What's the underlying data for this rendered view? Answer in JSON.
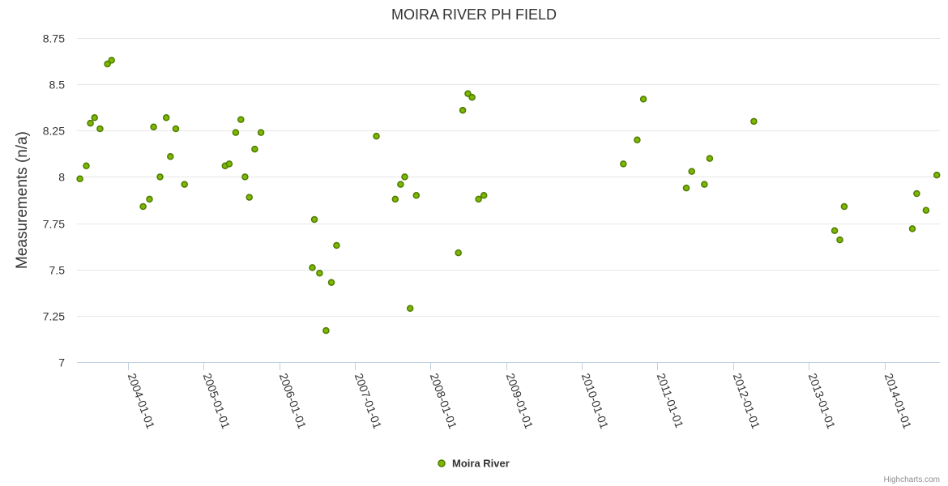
{
  "chart_data": {
    "type": "scatter",
    "title": "MOIRA RIVER PH FIELD",
    "xlabel": "",
    "ylabel": "Measurements (n/a)",
    "ylim": [
      7,
      8.75
    ],
    "yticks": [
      "7",
      "7.25",
      "7.5",
      "7.75",
      "8",
      "8.25",
      "8.5",
      "8.75"
    ],
    "xlim": [
      "2003-05-01",
      "2014-09-25"
    ],
    "xticks": [
      "2004-01-01",
      "2005-01-01",
      "2006-01-01",
      "2007-01-01",
      "2008-01-01",
      "2009-01-01",
      "2010-01-01",
      "2011-01-01",
      "2012-01-01",
      "2013-01-01",
      "2014-01-01"
    ],
    "grid": true,
    "legend_position": "bottom-center",
    "colors": {
      "marker_fill": "#7cb800",
      "marker_stroke": "#4f7a00"
    },
    "series": [
      {
        "name": "Moira River",
        "points": [
          [
            "2003-05-15",
            7.99
          ],
          [
            "2003-06-15",
            8.06
          ],
          [
            "2003-07-05",
            8.29
          ],
          [
            "2003-07-25",
            8.32
          ],
          [
            "2003-08-20",
            8.26
          ],
          [
            "2003-09-25",
            8.61
          ],
          [
            "2003-10-15",
            8.63
          ],
          [
            "2004-03-15",
            7.84
          ],
          [
            "2004-04-15",
            7.88
          ],
          [
            "2004-05-05",
            8.27
          ],
          [
            "2004-06-05",
            8.0
          ],
          [
            "2004-07-05",
            8.32
          ],
          [
            "2004-07-25",
            8.11
          ],
          [
            "2004-08-20",
            8.26
          ],
          [
            "2004-10-01",
            7.96
          ],
          [
            "2005-04-15",
            8.06
          ],
          [
            "2005-05-05",
            8.07
          ],
          [
            "2005-06-05",
            8.24
          ],
          [
            "2005-06-30",
            8.31
          ],
          [
            "2005-07-20",
            8.0
          ],
          [
            "2005-08-10",
            7.89
          ],
          [
            "2005-09-05",
            8.15
          ],
          [
            "2005-10-05",
            8.24
          ],
          [
            "2006-06-10",
            7.51
          ],
          [
            "2006-06-20",
            7.77
          ],
          [
            "2006-07-15",
            7.48
          ],
          [
            "2006-08-15",
            7.17
          ],
          [
            "2006-09-10",
            7.43
          ],
          [
            "2006-10-05",
            7.63
          ],
          [
            "2007-04-15",
            8.22
          ],
          [
            "2007-07-15",
            7.88
          ],
          [
            "2007-08-10",
            7.96
          ],
          [
            "2007-08-30",
            8.0
          ],
          [
            "2007-09-25",
            7.29
          ],
          [
            "2007-10-25",
            7.9
          ],
          [
            "2008-05-15",
            7.59
          ],
          [
            "2008-06-05",
            8.36
          ],
          [
            "2008-06-30",
            8.45
          ],
          [
            "2008-07-20",
            8.43
          ],
          [
            "2008-08-20",
            7.88
          ],
          [
            "2008-09-15",
            7.9
          ],
          [
            "2010-07-20",
            8.07
          ],
          [
            "2010-09-25",
            8.2
          ],
          [
            "2010-10-25",
            8.42
          ],
          [
            "2011-05-20",
            7.94
          ],
          [
            "2011-06-15",
            8.03
          ],
          [
            "2011-08-15",
            7.96
          ],
          [
            "2011-09-10",
            8.1
          ],
          [
            "2012-04-10",
            8.3
          ],
          [
            "2013-05-05",
            7.71
          ],
          [
            "2013-05-30",
            7.66
          ],
          [
            "2013-06-20",
            7.84
          ],
          [
            "2014-05-15",
            7.72
          ],
          [
            "2014-06-05",
            7.91
          ],
          [
            "2014-07-20",
            7.82
          ],
          [
            "2014-09-10",
            8.01
          ]
        ]
      }
    ]
  },
  "credits": "Highcharts.com"
}
